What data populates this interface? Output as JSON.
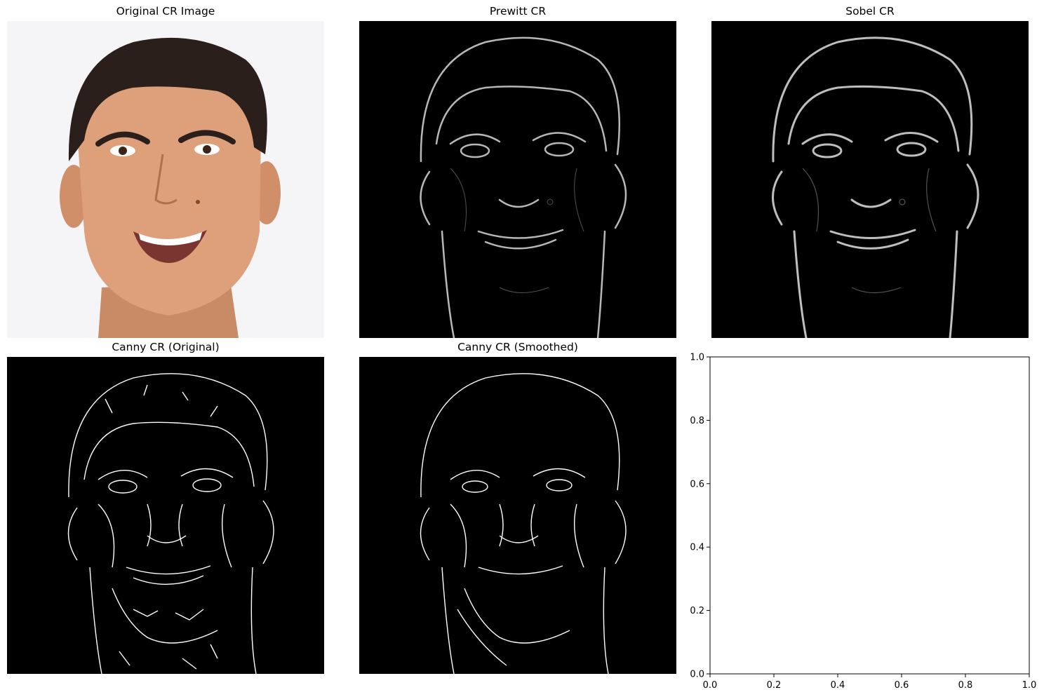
{
  "figure": {
    "panels": [
      {
        "title": "Original CR Image"
      },
      {
        "title": "Prewitt CR"
      },
      {
        "title": "Sobel CR"
      },
      {
        "title": "Canny CR (Original)"
      },
      {
        "title": "Canny CR (Smoothed)"
      }
    ]
  },
  "chart_data": [
    {
      "type": "image",
      "title": "Original CR Image"
    },
    {
      "type": "image",
      "title": "Prewitt CR"
    },
    {
      "type": "image",
      "title": "Sobel CR"
    },
    {
      "type": "image",
      "title": "Canny CR (Original)"
    },
    {
      "type": "image",
      "title": "Canny CR (Smoothed)"
    },
    {
      "type": "scatter",
      "title": "",
      "xlabel": "",
      "ylabel": "",
      "xlim": [
        0,
        1
      ],
      "ylim": [
        0,
        1
      ],
      "xticks": [
        "0.0",
        "0.2",
        "0.4",
        "0.6",
        "0.8",
        "1.0"
      ],
      "yticks": [
        "0.0",
        "0.2",
        "0.4",
        "0.6",
        "0.8",
        "1.0"
      ],
      "series": []
    }
  ],
  "colors": {
    "photo_background": "#f5f5f7",
    "skin": "#d89a74",
    "hair": "#2a1f1a",
    "edge_background": "#000000",
    "edge_line": "#ffffff"
  }
}
